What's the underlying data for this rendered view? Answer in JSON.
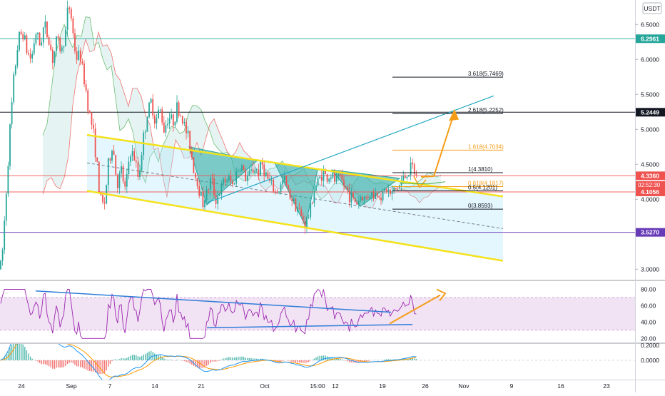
{
  "chart_data": [
    {
      "type": "candlestick",
      "currency": "USDT",
      "x_ticks": [
        "24",
        "Sep",
        "7",
        "14",
        "21",
        "Oct",
        "15:00",
        "12",
        "19",
        "26",
        "Nov",
        "9",
        "16",
        "23"
      ],
      "y_ticks": [
        "6.5000",
        "6.0000",
        "5.5000",
        "5.0000",
        "4.5000",
        "4.0000",
        "3.5000",
        "3.0000"
      ],
      "ylim": [
        2.85,
        6.85
      ],
      "price_path": [
        [
          0,
          3.0
        ],
        [
          4,
          3.3
        ],
        [
          8,
          4.0
        ],
        [
          14,
          5.0
        ],
        [
          20,
          5.8
        ],
        [
          26,
          6.3
        ],
        [
          32,
          6.4
        ],
        [
          38,
          6.1
        ],
        [
          44,
          6.0
        ],
        [
          50,
          6.4
        ],
        [
          56,
          6.2
        ],
        [
          62,
          6.5
        ],
        [
          68,
          6.3
        ],
        [
          74,
          6.0
        ],
        [
          80,
          6.3
        ],
        [
          86,
          6.1
        ],
        [
          92,
          6.4
        ],
        [
          96,
          6.8
        ],
        [
          100,
          6.6
        ],
        [
          104,
          6.2
        ],
        [
          108,
          6.0
        ],
        [
          112,
          6.1
        ],
        [
          116,
          5.8
        ],
        [
          120,
          5.6
        ],
        [
          124,
          5.3
        ],
        [
          130,
          5.0
        ],
        [
          135,
          4.6
        ],
        [
          140,
          4.0
        ],
        [
          146,
          3.9
        ],
        [
          152,
          4.5
        ],
        [
          158,
          4.8
        ],
        [
          164,
          4.2
        ],
        [
          170,
          4.4
        ],
        [
          176,
          4.1
        ],
        [
          182,
          4.7
        ],
        [
          188,
          4.6
        ],
        [
          194,
          4.3
        ],
        [
          200,
          4.8
        ],
        [
          206,
          5.2
        ],
        [
          212,
          5.4
        ],
        [
          218,
          5.1
        ],
        [
          224,
          5.3
        ],
        [
          230,
          5.0
        ],
        [
          236,
          5.2
        ],
        [
          242,
          5.1
        ],
        [
          248,
          5.3
        ],
        [
          254,
          5.2
        ],
        [
          260,
          5.0
        ],
        [
          266,
          4.8
        ],
        [
          272,
          4.4
        ],
        [
          278,
          4.2
        ],
        [
          284,
          3.95
        ],
        [
          290,
          4.1
        ],
        [
          296,
          4.3
        ],
        [
          302,
          4.0
        ],
        [
          308,
          4.1
        ],
        [
          314,
          4.25
        ],
        [
          320,
          4.3
        ],
        [
          326,
          4.2
        ],
        [
          332,
          4.4
        ],
        [
          338,
          4.5
        ],
        [
          344,
          4.3
        ],
        [
          350,
          4.35
        ],
        [
          356,
          4.45
        ],
        [
          362,
          4.4
        ],
        [
          368,
          4.5
        ],
        [
          374,
          4.3
        ],
        [
          380,
          4.2
        ],
        [
          386,
          4.1
        ],
        [
          392,
          4.15
        ],
        [
          398,
          4.3
        ],
        [
          404,
          4.1
        ],
        [
          410,
          4.0
        ],
        [
          416,
          3.9
        ],
        [
          422,
          3.75
        ],
        [
          428,
          3.65
        ],
        [
          434,
          3.8
        ],
        [
          440,
          4.15
        ],
        [
          446,
          4.25
        ],
        [
          452,
          4.4
        ],
        [
          458,
          4.3
        ],
        [
          464,
          4.35
        ],
        [
          470,
          4.25
        ],
        [
          476,
          4.3
        ],
        [
          482,
          4.2
        ],
        [
          488,
          4.1
        ],
        [
          494,
          4.0
        ],
        [
          500,
          3.95
        ],
        [
          506,
          4.05
        ],
        [
          512,
          4.0
        ],
        [
          518,
          4.1
        ],
        [
          524,
          4.05
        ],
        [
          530,
          4.1
        ],
        [
          536,
          4.05
        ],
        [
          542,
          4.15
        ],
        [
          548,
          4.05
        ],
        [
          554,
          4.15
        ],
        [
          560,
          4.2
        ],
        [
          566,
          4.3
        ],
        [
          572,
          4.4
        ],
        [
          578,
          4.45
        ],
        [
          582,
          4.35
        ],
        [
          586,
          4.3
        ]
      ],
      "horizontal_levels": [
        {
          "value": 6.2961,
          "label": "6.2961",
          "color": "#26a69a"
        },
        {
          "value": 5.2449,
          "label": "5.2449",
          "color": "#131722"
        },
        {
          "value": 4.336,
          "label": "4.3360",
          "color": "#ef5350"
        },
        {
          "value": 4.1056,
          "label": "4.1056",
          "color": "#ef5350"
        },
        {
          "value": 3.527,
          "label": "3.5270",
          "color": "#673ab7"
        }
      ],
      "countdown": "02:52:30",
      "fibonacci": [
        {
          "label": "3.618(5.7469)",
          "value": 5.7469,
          "color": "#131722"
        },
        {
          "label": "2.618(5.2252)",
          "value": 5.2252,
          "color": "#131722"
        },
        {
          "label": "1.618(4.7034)",
          "value": 4.7034,
          "color": "#f59d18"
        },
        {
          "label": "1(4.3810)",
          "value": 4.381,
          "color": "#131722"
        },
        {
          "label": "0.618(4.1817)",
          "value": 4.1817,
          "color": "#f59d18"
        },
        {
          "label": "0.5(4.1201)",
          "value": 4.1201,
          "color": "#131722"
        },
        {
          "label": "0(3.8593)",
          "value": 3.8593,
          "color": "#131722"
        }
      ],
      "colors": {
        "up": "#26a69a",
        "down": "#ef5350",
        "channel": "#f4e21c",
        "arrow": "#f59d18",
        "trend": "#22a7c2"
      }
    },
    {
      "type": "line",
      "indicator": "RSI",
      "y_ticks": [
        "80.00",
        "60.00",
        "40.00",
        "20.00"
      ],
      "ylim": [
        15,
        90
      ],
      "band": [
        30,
        70
      ],
      "colors": {
        "line": "#9c27b0",
        "trend": "#2f7dd8",
        "arrow": "#f59d18"
      }
    },
    {
      "type": "bar",
      "indicator": "MACD",
      "y_ticks": [
        "0.2000",
        "0.0000"
      ],
      "ylim": [
        -0.26,
        0.22
      ],
      "colors": {
        "macd": "#2196f3",
        "signal": "#ff9800",
        "hist_up": "#26a69a",
        "hist_down": "#ef5350"
      }
    }
  ]
}
